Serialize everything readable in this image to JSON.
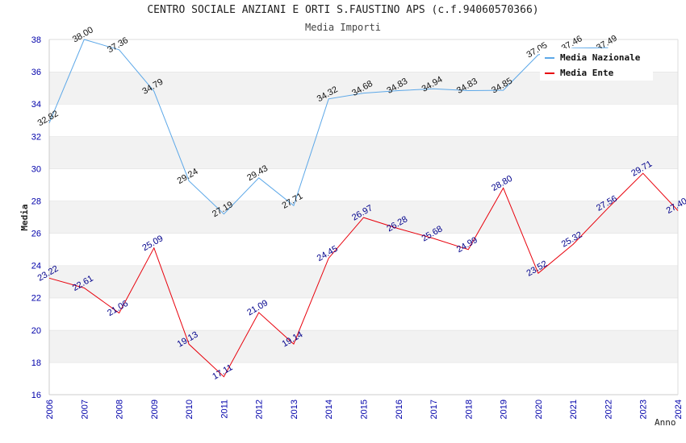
{
  "chart_data": {
    "type": "line",
    "title": "CENTRO SOCIALE ANZIANI E ORTI S.FAUSTINO APS (c.f.94060570366)",
    "subtitle": "Media Importi",
    "xlabel": "Anno",
    "ylabel": "Media",
    "ylim": [
      16,
      38
    ],
    "yticks": [
      16,
      18,
      20,
      22,
      24,
      26,
      28,
      30,
      32,
      34,
      36,
      38
    ],
    "categories": [
      "2006",
      "2007",
      "2008",
      "2009",
      "2010",
      "2011",
      "2012",
      "2013",
      "2014",
      "2015",
      "2016",
      "2017",
      "2018",
      "2019",
      "2020",
      "2021",
      "2022",
      "2023",
      "2024"
    ],
    "series": [
      {
        "name": "Media Nazionale",
        "color": "#5da8e8",
        "values": [
          32.82,
          38.0,
          37.36,
          34.79,
          29.24,
          27.19,
          29.43,
          27.71,
          34.32,
          34.68,
          34.83,
          34.94,
          34.83,
          34.85,
          37.05,
          37.46,
          37.49,
          null,
          null
        ],
        "labels": [
          "32.82",
          "38.00",
          "37.36",
          "34.79",
          "29.24",
          "27.19",
          "29.43",
          "27.71",
          "34.32",
          "34.68",
          "34.83",
          "34.94",
          "34.83",
          "34.85",
          "37.05",
          "37.46",
          "37.49",
          "",
          ""
        ]
      },
      {
        "name": "Media Ente",
        "color": "#e8000b",
        "values": [
          23.22,
          22.61,
          21.06,
          25.09,
          19.13,
          17.11,
          21.09,
          19.14,
          24.45,
          26.97,
          26.28,
          25.68,
          24.99,
          28.8,
          23.52,
          25.32,
          27.56,
          29.71,
          27.4
        ],
        "labels": [
          "23.22",
          "22.61",
          "21.06",
          "25.09",
          "19.13",
          "17.11",
          "21.09",
          "19.14",
          "24.45",
          "26.97",
          "26.28",
          "25.68",
          "24.99",
          "28.80",
          "23.52",
          "25.32",
          "27.56",
          "29.71",
          "27.40"
        ]
      }
    ],
    "legend": "top-right"
  }
}
